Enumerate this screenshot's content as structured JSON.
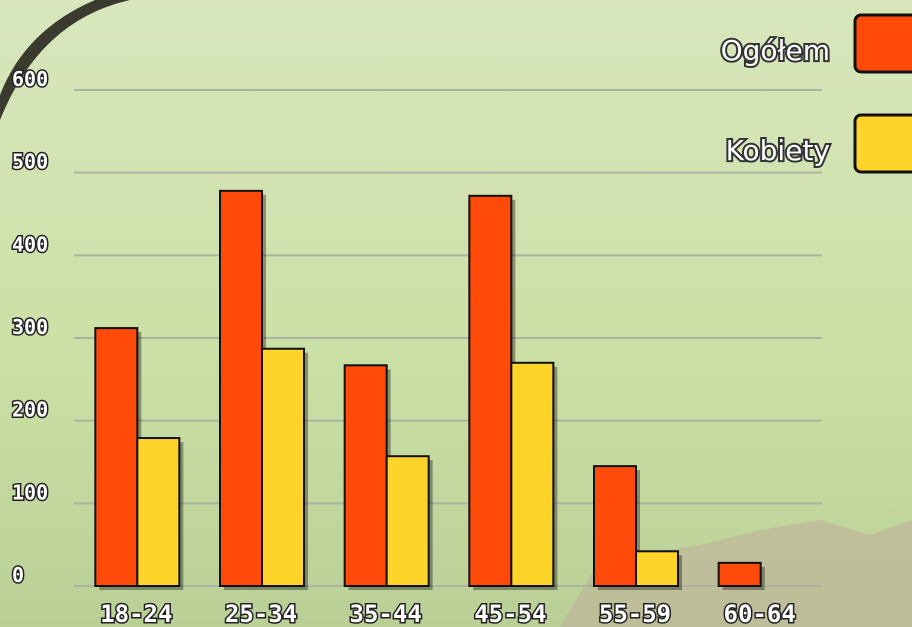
{
  "chart_data": {
    "type": "bar",
    "categories": [
      "18-24",
      "25-34",
      "35-44",
      "45-54",
      "55-59",
      "60-64"
    ],
    "series": [
      {
        "name": "Ogółem",
        "color": "#ff4a0a",
        "values": [
          312,
          478,
          267,
          472,
          145,
          28
        ]
      },
      {
        "name": "Kobiety",
        "color": "#ffd42a",
        "values": [
          179,
          287,
          157,
          270,
          42,
          null
        ]
      }
    ],
    "ylim": [
      0,
      600
    ],
    "yticks": [
      0,
      100,
      200,
      300,
      400,
      500,
      600
    ],
    "grid": true,
    "legend": "top-right"
  }
}
